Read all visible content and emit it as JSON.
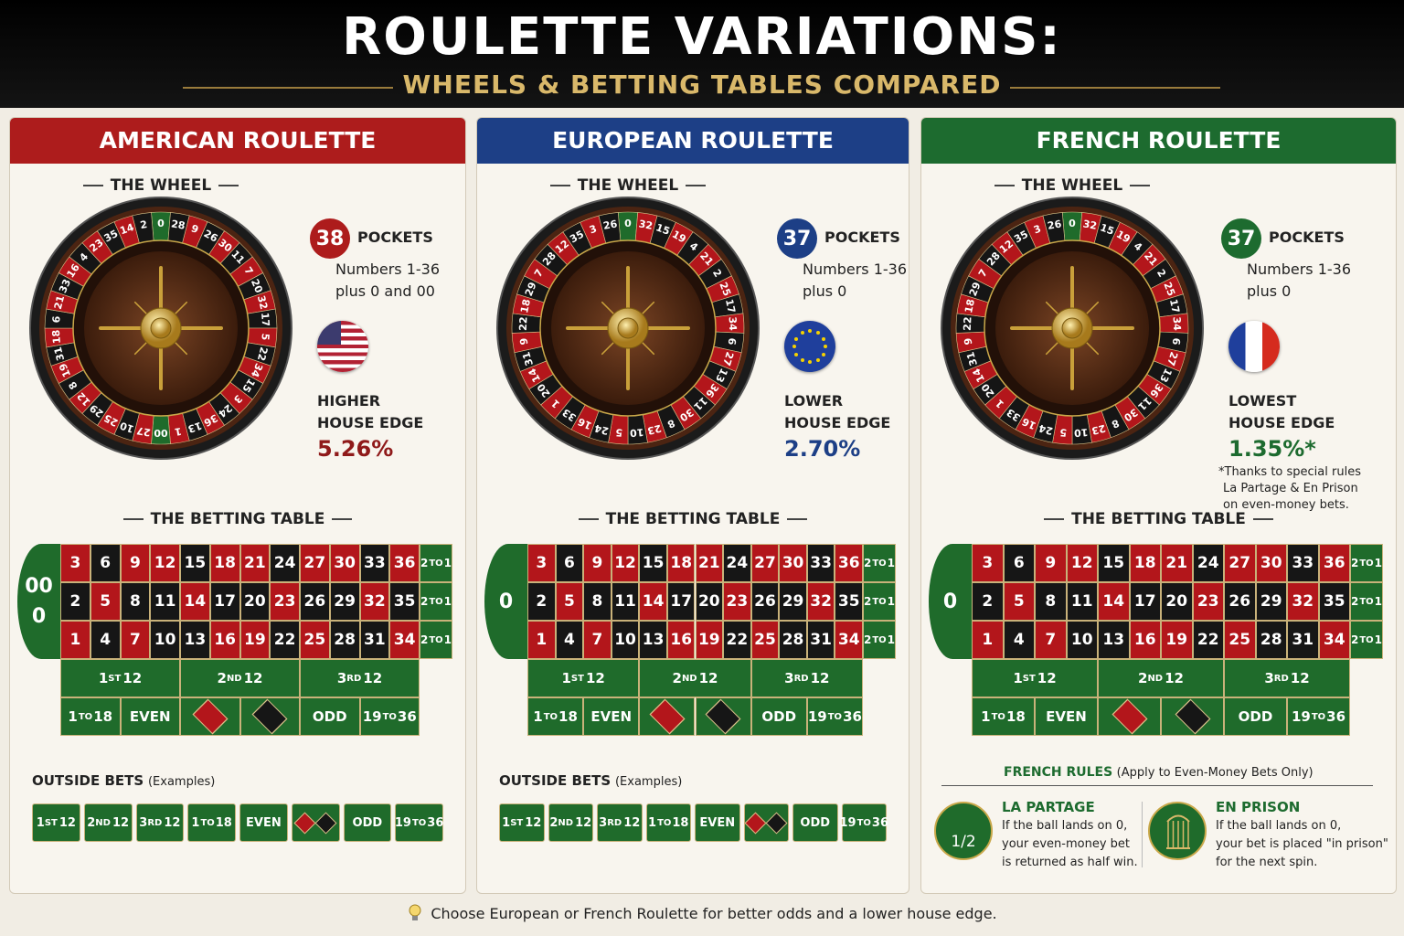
{
  "header": {
    "title": "ROULETTE VARIATIONS:",
    "subtitle": "WHEELS & BETTING TABLES COMPARED"
  },
  "betting_table": {
    "rows": [
      [
        3,
        6,
        9,
        12,
        15,
        18,
        21,
        24,
        27,
        30,
        33,
        36
      ],
      [
        2,
        5,
        8,
        11,
        14,
        17,
        20,
        23,
        26,
        29,
        32,
        35
      ],
      [
        1,
        4,
        7,
        10,
        13,
        16,
        19,
        22,
        25,
        28,
        31,
        34
      ]
    ],
    "row_colors": [
      "rbrrbrrbrrbr",
      "brbbrbbrbbrb",
      "rbrbbrrbrbbr"
    ],
    "column_bet": [
      "2",
      "TO",
      "1"
    ],
    "dozens": [
      [
        "1",
        "ST",
        "12"
      ],
      [
        "2",
        "ND",
        "12"
      ],
      [
        "3",
        "RD",
        "12"
      ]
    ],
    "even_money": [
      [
        "1",
        "TO",
        "18"
      ],
      [
        "EVEN"
      ],
      [
        "ODD"
      ],
      [
        "19",
        "TO",
        "36"
      ]
    ]
  },
  "panels": [
    {
      "title": "AMERICAN ROULETTE",
      "color": "#ad1c1c",
      "wheel_heading": "THE WHEEL",
      "wheel": [
        "0",
        "28",
        "9",
        "26",
        "30",
        "11",
        "7",
        "20",
        "32",
        "17",
        "5",
        "22",
        "34",
        "15",
        "3",
        "24",
        "36",
        "13",
        "1",
        "00",
        "27",
        "10",
        "25",
        "29",
        "12",
        "8",
        "19",
        "31",
        "18",
        "6",
        "21",
        "33",
        "16",
        "4",
        "23",
        "35",
        "14",
        "2"
      ],
      "wheel_colors": [
        "#151515",
        "#b3161b"
      ],
      "pockets": "38",
      "pockets_label": "POCKETS",
      "pockets_note": [
        "Numbers 1-36",
        "plus 0 and 00"
      ],
      "flag": "us",
      "edge_label": [
        "HIGHER",
        "HOUSE EDGE"
      ],
      "edge_value": "5.26%",
      "edge_color": "#8f1a1a",
      "table_heading": "THE BETTING TABLE",
      "zeros": [
        "00",
        "0"
      ],
      "outside_bets": {
        "title": "OUTSIDE BETS",
        "note": "(Examples)"
      }
    },
    {
      "title": "EUROPEAN ROULETTE",
      "color": "#1d3f86",
      "wheel_heading": "THE WHEEL",
      "wheel": [
        "0",
        "32",
        "15",
        "19",
        "4",
        "21",
        "2",
        "25",
        "17",
        "34",
        "6",
        "27",
        "13",
        "36",
        "11",
        "30",
        "8",
        "23",
        "10",
        "5",
        "24",
        "16",
        "33",
        "1",
        "20",
        "14",
        "31",
        "9",
        "22",
        "18",
        "29",
        "7",
        "28",
        "12",
        "35",
        "3",
        "26"
      ],
      "wheel_colors": [
        "#b3161b",
        "#151515"
      ],
      "pockets": "37",
      "pockets_label": "POCKETS",
      "pockets_note": [
        "Numbers 1-36",
        "plus 0"
      ],
      "flag": "eu",
      "edge_label": [
        "LOWER",
        "HOUSE EDGE"
      ],
      "edge_value": "2.70%",
      "edge_color": "#1d3f86",
      "table_heading": "THE BETTING TABLE",
      "zeros": [
        "0"
      ],
      "outside_bets": {
        "title": "OUTSIDE BETS",
        "note": "(Examples)"
      }
    },
    {
      "title": "FRENCH ROULETTE",
      "color": "#1d6b2f",
      "wheel_heading": "THE WHEEL",
      "wheel": [
        "0",
        "32",
        "15",
        "19",
        "4",
        "21",
        "2",
        "25",
        "17",
        "34",
        "6",
        "27",
        "13",
        "36",
        "11",
        "30",
        "8",
        "23",
        "10",
        "5",
        "24",
        "16",
        "33",
        "1",
        "20",
        "14",
        "31",
        "9",
        "22",
        "18",
        "29",
        "7",
        "28",
        "12",
        "35",
        "3",
        "26"
      ],
      "wheel_colors": [
        "#b3161b",
        "#151515"
      ],
      "pockets": "37",
      "pockets_label": "POCKETS",
      "pockets_note": [
        "Numbers 1-36",
        "plus 0"
      ],
      "flag": "fr",
      "edge_label": [
        "LOWEST",
        "HOUSE EDGE"
      ],
      "edge_value": "1.35%*",
      "edge_color": "#1d6b2f",
      "footnote": [
        "*Thanks to special rules",
        "La Partage & En Prison",
        "on even-money bets."
      ],
      "table_heading": "THE BETTING TABLE",
      "zeros": [
        "0"
      ],
      "french_rules": {
        "title": "FRENCH RULES",
        "note": "(Apply to Even-Money Bets Only)",
        "items": [
          {
            "title": "LA PARTAGE",
            "icon": "1/2",
            "text": [
              "If the ball lands on 0,",
              "your even-money bet",
              "is returned as half win."
            ]
          },
          {
            "title": "EN PRISON",
            "text": [
              "If the ball lands on 0,",
              "your bet is placed \"in prison\"",
              "for the next spin."
            ]
          }
        ]
      }
    }
  ],
  "footer": "Choose European or French Roulette for better odds and a lower house edge."
}
